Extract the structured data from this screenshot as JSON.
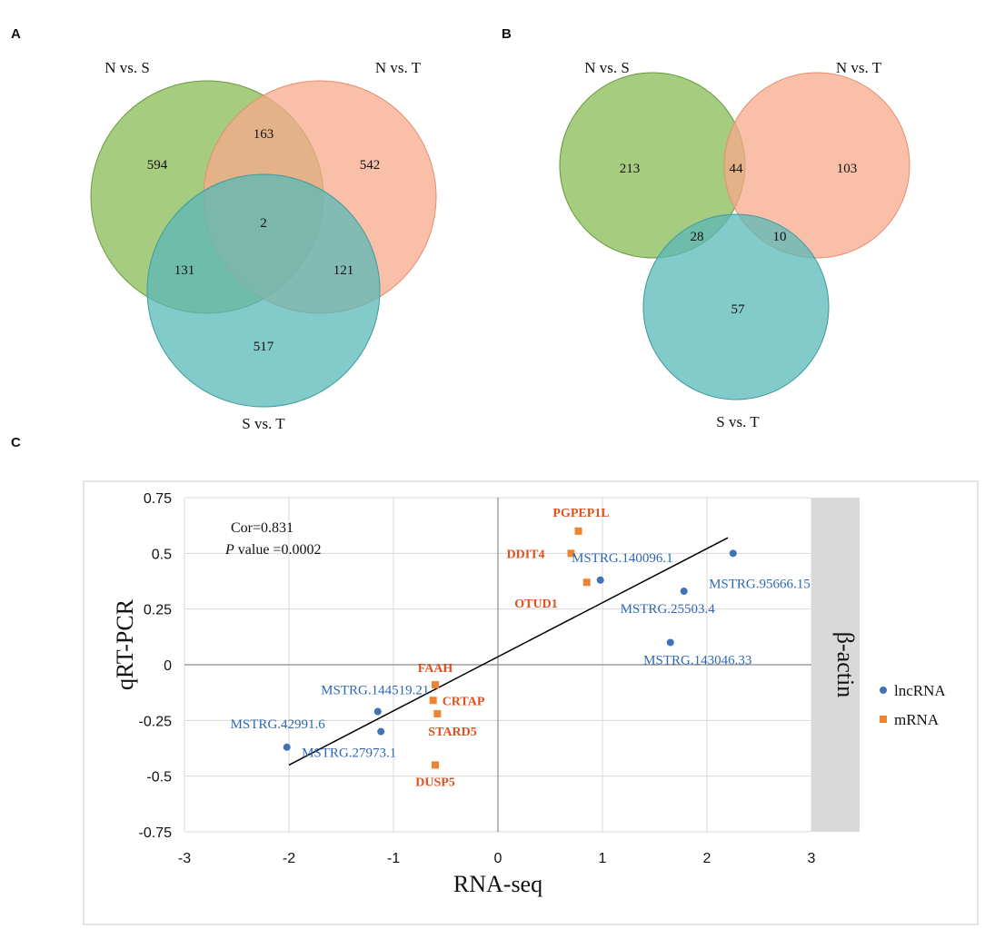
{
  "panels": {
    "A": {
      "letter": "A",
      "set_labels": [
        "N vs. S",
        "N vs. T",
        "S vs. T"
      ],
      "regions": {
        "only_NS": "594",
        "only_NT": "542",
        "only_ST": "517",
        "NS_NT": "163",
        "NS_ST": "131",
        "NT_ST": "121",
        "all": "2"
      }
    },
    "B": {
      "letter": "B",
      "set_labels": [
        "N vs. S",
        "N vs. T",
        "S vs. T"
      ],
      "regions": {
        "only_NS": "213",
        "only_NT": "103",
        "only_ST": "57",
        "NS_NT": "44",
        "NS_ST": "28",
        "NT_ST": "10"
      }
    },
    "C": {
      "letter": "C"
    }
  },
  "colors": {
    "green": "#88bb55",
    "salmon": "#f7a98b",
    "teal": "#5ab8b8",
    "lncRNA": "#3f72b6",
    "mRNA": "#ee8433",
    "mRNA_label": "#e0501e",
    "strip": "#d9d9d9"
  },
  "chart_data": {
    "type": "scatter",
    "xlabel": "RNA-seq",
    "ylabel": "qRT-PCR",
    "xlim": [
      -3,
      3
    ],
    "ylim": [
      -0.75,
      0.75
    ],
    "xticks": [
      -3,
      -2,
      -1,
      0,
      1,
      2,
      3
    ],
    "yticks": [
      0.75,
      0.5,
      0.25,
      0,
      -0.25,
      -0.5,
      -0.75
    ],
    "ytick_labels": [
      "0.75",
      "0.5",
      "0.25",
      "0",
      "-0.25",
      "-0.5",
      "-0.75"
    ],
    "xtick_labels": [
      "-3",
      "-2",
      "-1",
      "0",
      "1",
      "2",
      "3"
    ],
    "annotation": {
      "cor": "Cor=0.831",
      "p_symbol": "P",
      "p_rest": " value =0.0002"
    },
    "facet_label": "β-actin",
    "legend": [
      {
        "name": "lncRNA",
        "marker": "circle"
      },
      {
        "name": "mRNA",
        "marker": "square"
      }
    ],
    "trendline": {
      "x": [
        -2.0,
        2.2
      ],
      "y": [
        -0.45,
        0.57
      ]
    },
    "series": [
      {
        "name": "lncRNA",
        "points": [
          {
            "label": "MSTRG.140096.1",
            "x": 0.98,
            "y": 0.38
          },
          {
            "label": "MSTRG.95666.15",
            "x": 2.25,
            "y": 0.5
          },
          {
            "label": "MSTRG.25503.4",
            "x": 1.78,
            "y": 0.33
          },
          {
            "label": "MSTRG.143046.33",
            "x": 1.65,
            "y": 0.1
          },
          {
            "label": "MSTRG.144519.21",
            "x": -1.15,
            "y": -0.21
          },
          {
            "label": "MSTRG.27973.1",
            "x": -1.12,
            "y": -0.3
          },
          {
            "label": "MSTRG.42991.6",
            "x": -2.02,
            "y": -0.37
          }
        ]
      },
      {
        "name": "mRNA",
        "points": [
          {
            "label": "PGPEP1L",
            "x": 0.77,
            "y": 0.6
          },
          {
            "label": "DDIT4",
            "x": 0.7,
            "y": 0.5
          },
          {
            "label": "OTUD1",
            "x": 0.85,
            "y": 0.37
          },
          {
            "label": "FAAH",
            "x": -0.6,
            "y": -0.09
          },
          {
            "label": "CRTAP",
            "x": -0.62,
            "y": -0.16
          },
          {
            "label": "STARD5",
            "x": -0.58,
            "y": -0.22
          },
          {
            "label": "DUSP5",
            "x": -0.6,
            "y": -0.45
          }
        ]
      }
    ]
  }
}
